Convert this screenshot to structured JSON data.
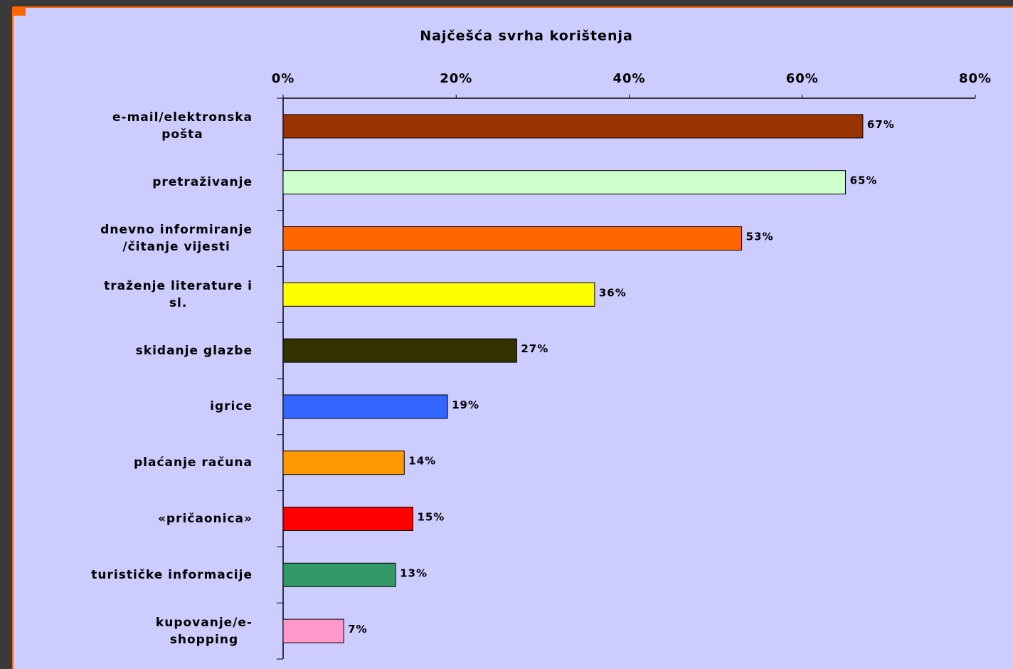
{
  "chart_data": {
    "type": "bar",
    "orientation": "horizontal",
    "title": "Najčešća svrha korištenja",
    "categories": [
      "e-mail/elektronska\npošta",
      "pretraživanje",
      "dnevno informiranje\n/čitanje vijesti",
      "traženje literature i\nsl.",
      "skidanje glazbe",
      "igrice",
      "plaćanje računa",
      "«pričaonica»",
      "turističke informacije",
      "kupovanje/e-\nshopping"
    ],
    "values": [
      67,
      65,
      53,
      36,
      27,
      19,
      14,
      15,
      13,
      7
    ],
    "value_labels": [
      "67%",
      "65%",
      "53%",
      "36%",
      "27%",
      "19%",
      "14%",
      "15%",
      "13%",
      "7%"
    ],
    "colors": [
      "#993300",
      "#ccffcc",
      "#ff6600",
      "#ffff00",
      "#333300",
      "#3366ff",
      "#ff9900",
      "#ff0000",
      "#339966",
      "#ff99cc"
    ],
    "xlim": [
      0,
      80
    ],
    "xticks": [
      {
        "value": 0,
        "label": "0%"
      },
      {
        "value": 20,
        "label": "20%"
      },
      {
        "value": 40,
        "label": "40%"
      },
      {
        "value": 60,
        "label": "60%"
      },
      {
        "value": 80,
        "label": "80%"
      }
    ],
    "grid": false
  }
}
